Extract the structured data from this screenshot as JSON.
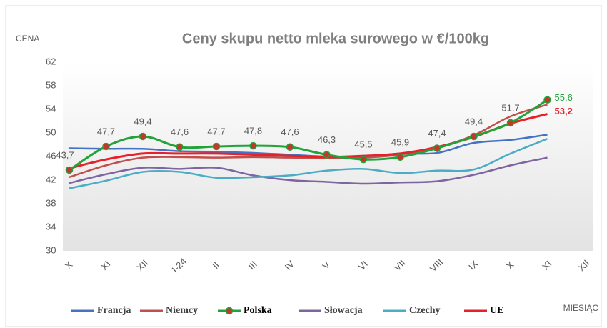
{
  "chart_data": {
    "type": "line",
    "title": "Ceny skupu netto mleka surowego  w €/100kg",
    "y_label": "CENA",
    "x_label": "MIESIĄC",
    "categories": [
      "X",
      "XI",
      "XII",
      "I-24",
      "II",
      "III",
      "IV",
      "V",
      "VI",
      "VII",
      "VIII",
      "IX",
      "X",
      "XI",
      "XII"
    ],
    "ylim": [
      30,
      62
    ],
    "yticks": [
      30,
      34,
      38,
      42,
      46,
      50,
      54,
      58,
      62
    ],
    "grid": false,
    "series": [
      {
        "name": "Francja",
        "color": "#4472c4",
        "values": [
          47.4,
          47.3,
          47.3,
          46.9,
          46.8,
          46.6,
          46.3,
          46.0,
          46.0,
          46.5,
          46.6,
          48.3,
          48.8,
          49.7,
          null
        ]
      },
      {
        "name": "Niemcy",
        "color": "#c0504d",
        "values": [
          42.5,
          44.5,
          45.8,
          45.9,
          45.8,
          45.9,
          45.8,
          45.7,
          45.8,
          46.3,
          47.5,
          49.6,
          52.8,
          54.8,
          null
        ]
      },
      {
        "name": "Polska",
        "color": "#22a33a",
        "marker_color": "#c0392b",
        "values": [
          43.7,
          47.7,
          49.4,
          47.6,
          47.7,
          47.8,
          47.6,
          46.3,
          45.5,
          45.9,
          47.4,
          49.4,
          51.7,
          55.6,
          null
        ],
        "value_labels": [
          "43,7",
          "47,7",
          "49,4",
          "47,6",
          "47,7",
          "47,8",
          "47,6",
          "46,3",
          "45,5",
          "45,9",
          "47,4",
          "49,4",
          "51,7",
          "55,6",
          null
        ]
      },
      {
        "name": "Słowacja",
        "color": "#8064a2",
        "values": [
          41.5,
          43.0,
          44.1,
          43.9,
          44.1,
          42.8,
          42.0,
          41.7,
          41.4,
          41.6,
          41.8,
          42.9,
          44.5,
          45.8,
          null
        ]
      },
      {
        "name": "Czechy",
        "color": "#4bacc6",
        "values": [
          40.6,
          41.9,
          43.4,
          43.4,
          42.4,
          42.5,
          42.8,
          43.6,
          43.9,
          43.2,
          43.6,
          43.8,
          46.5,
          49.0,
          null
        ]
      },
      {
        "name": "UE",
        "color": "#e8202a",
        "values": [
          44.0,
          45.5,
          46.5,
          46.5,
          46.5,
          46.3,
          46.1,
          45.9,
          46.1,
          46.5,
          47.6,
          49.3,
          51.6,
          53.2,
          null
        ],
        "value_labels": [
          null,
          null,
          null,
          null,
          null,
          null,
          null,
          null,
          null,
          null,
          null,
          null,
          null,
          "53,2",
          null
        ]
      }
    ]
  }
}
